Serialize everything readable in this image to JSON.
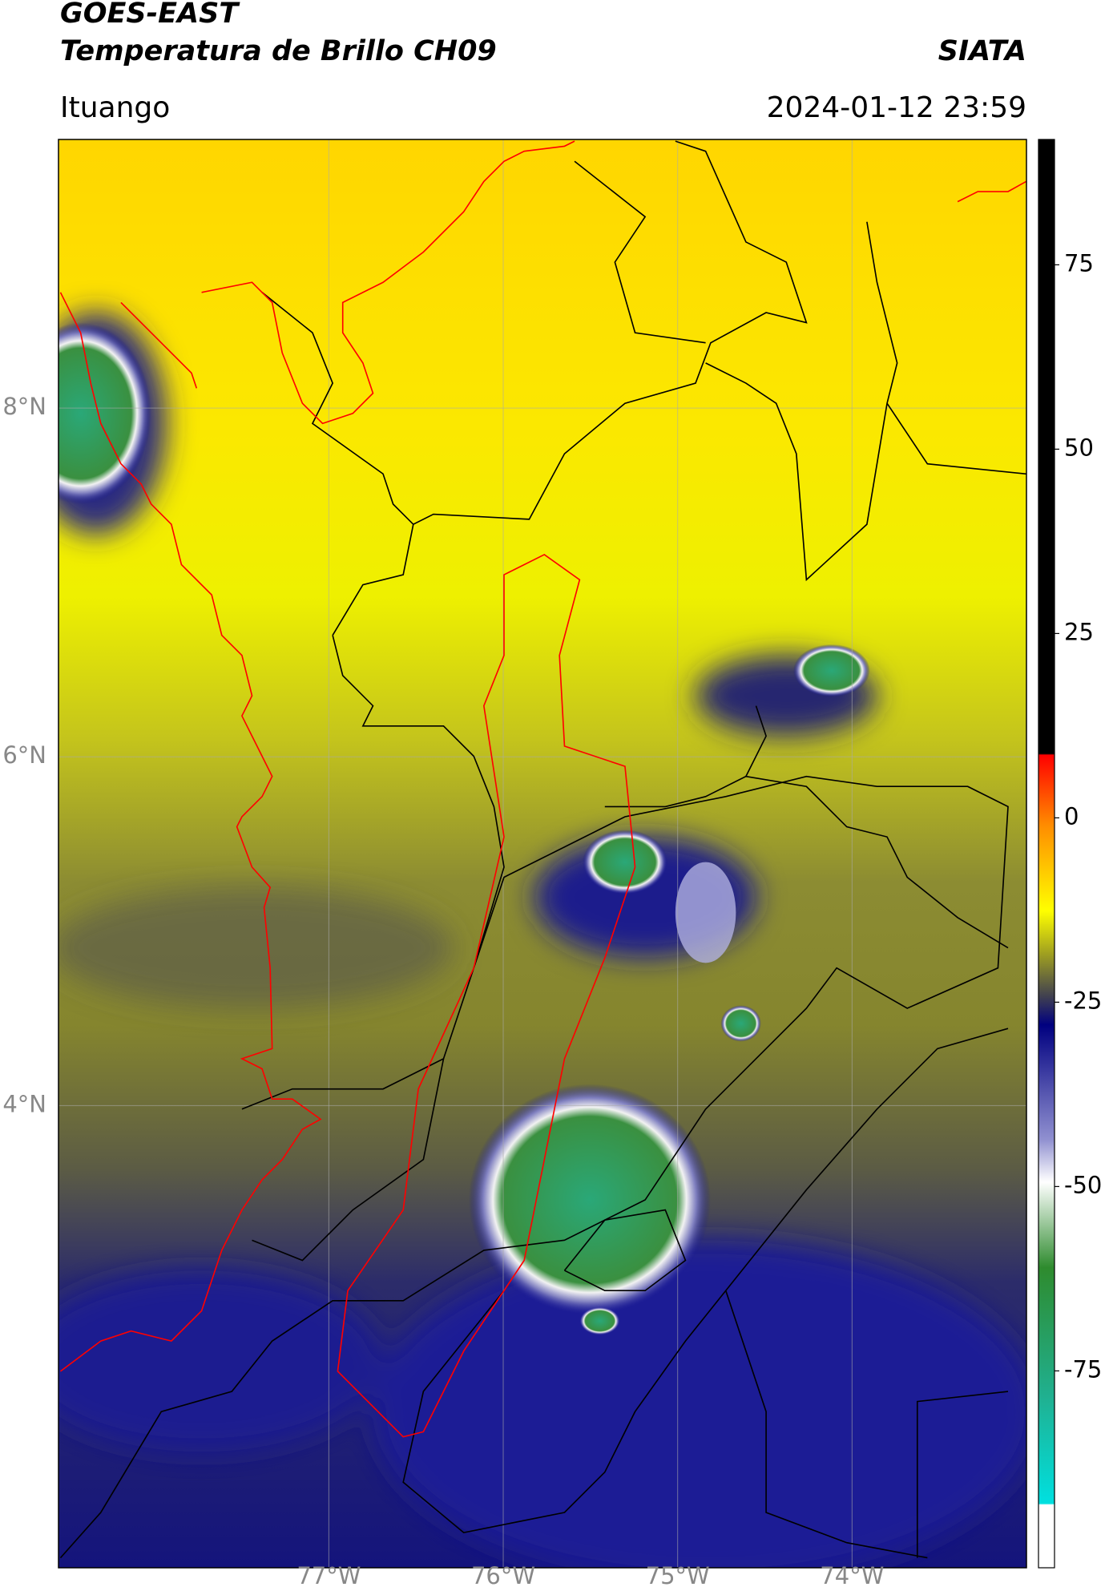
{
  "header": {
    "title": "GOES-EAST",
    "subtitle": "Temperatura de Brillo CH09",
    "source": "SIATA",
    "location": "Ituango",
    "timestamp": "2024-01-12 23:59"
  },
  "map": {
    "xlim": [
      -78.55,
      -73.0
    ],
    "ylim": [
      1.35,
      9.54
    ],
    "xticks": [
      {
        "value": -77,
        "label": "77°W"
      },
      {
        "value": -76,
        "label": "76°W"
      },
      {
        "value": -75,
        "label": "75°W"
      },
      {
        "value": -74,
        "label": "74°W"
      }
    ],
    "yticks": [
      {
        "value": 8,
        "label": "8°N"
      },
      {
        "value": 6,
        "label": "6°N"
      },
      {
        "value": 4,
        "label": "4°N"
      }
    ],
    "grid": true
  },
  "colorbar": {
    "clim": [
      -101.7,
      92
    ],
    "ticks": [
      75,
      50,
      25,
      0,
      -25,
      -50,
      -75
    ]
  }
}
